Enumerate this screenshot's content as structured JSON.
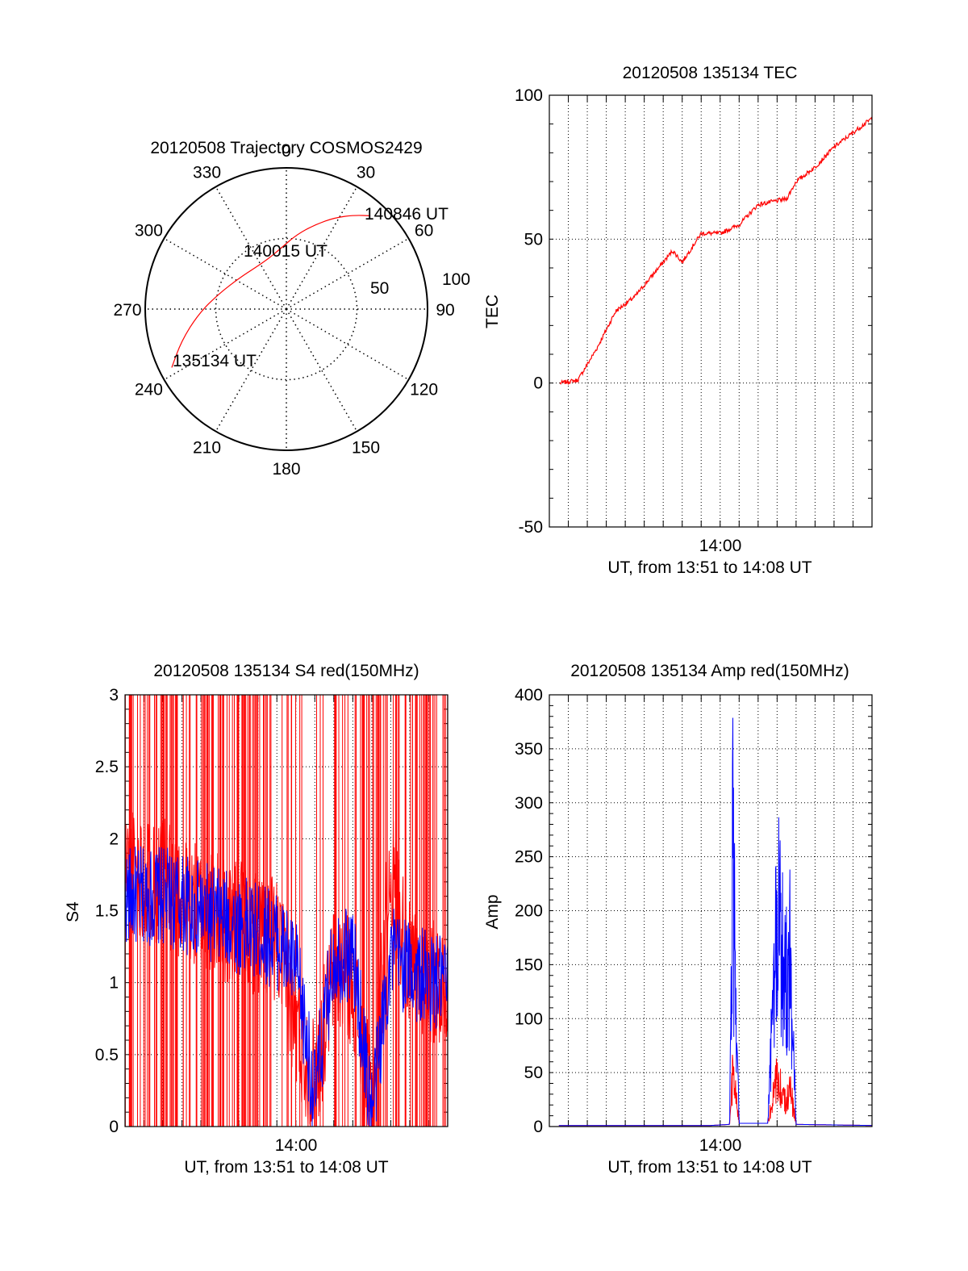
{
  "chart_data": [
    {
      "id": "trajectory",
      "type": "polar",
      "title": "20120508 Trajectory COSMOS2429",
      "azimuth_labels": [
        "0",
        "30",
        "60",
        "90",
        "120",
        "150",
        "180",
        "210",
        "240",
        "270",
        "300",
        "330"
      ],
      "radial_labels": [
        "50",
        "100"
      ],
      "series": [
        {
          "color": "#ff0000",
          "points": [
            {
              "az": 243,
              "el": 8
            },
            {
              "az": 253,
              "el": 20
            },
            {
              "az": 267,
              "el": 34
            },
            {
              "az": 283,
              "el": 46
            },
            {
              "az": 303,
              "el": 54
            },
            {
              "az": 323,
              "el": 57
            },
            {
              "az": 340,
              "el": 56
            },
            {
              "az": 355,
              "el": 51
            },
            {
              "az": 8,
              "el": 42
            },
            {
              "az": 19,
              "el": 33
            },
            {
              "az": 28,
              "el": 24
            },
            {
              "az": 36,
              "el": 16
            },
            {
              "az": 42,
              "el": 10
            }
          ]
        }
      ],
      "annotations": [
        "140846 UT",
        "140015 UT",
        "135134 UT"
      ]
    },
    {
      "id": "tec",
      "type": "line",
      "title": "20120508 135134 TEC",
      "xlabel": "UT, from 13:51 to 14:08 UT",
      "ylabel": "TEC",
      "xlim": [
        "13:51",
        "14:08"
      ],
      "ylim": [
        -50,
        100
      ],
      "yticks": [
        "-50",
        "0",
        "50",
        "100"
      ],
      "xticks": [
        "14:00"
      ],
      "grid": true,
      "series": [
        {
          "color": "#ff0000",
          "x": [
            "13:51:34",
            "13:52:30",
            "13:53:30",
            "13:54:30",
            "13:55:30",
            "13:56:30",
            "13:57:30",
            "13:58:00",
            "13:59:00",
            "14:00:00",
            "14:01:00",
            "14:02:00",
            "14:03:30",
            "14:04:00",
            "14:05:00",
            "14:06:00",
            "14:07:00",
            "14:08:00"
          ],
          "y": [
            0,
            1,
            12,
            25,
            30,
            38,
            46,
            42,
            52,
            52,
            55,
            62,
            64,
            70,
            75,
            82,
            87,
            92
          ]
        }
      ]
    },
    {
      "id": "s4",
      "type": "line",
      "title": "20120508 135134 S4 red(150MHz)",
      "xlabel": "UT, from 13:51 to 14:08 UT",
      "ylabel": "S4",
      "xlim": [
        "13:51",
        "14:08"
      ],
      "ylim": [
        0,
        3
      ],
      "yticks": [
        "0",
        "0.5",
        "1",
        "1.5",
        "2",
        "2.5",
        "3"
      ],
      "xticks": [
        "14:00"
      ],
      "grid": true,
      "series": [
        {
          "color": "#ff0000",
          "x": [
            "13:51",
            "13:53",
            "13:55",
            "13:57",
            "13:59",
            "14:00",
            "14:01",
            "14:02",
            "14:03",
            "14:04",
            "14:05",
            "14:06",
            "14:07",
            "14:08"
          ],
          "y": [
            1.8,
            1.7,
            1.5,
            1.4,
            1.3,
            0.7,
            0.3,
            1.1,
            1.0,
            0.1,
            1.8,
            1.1,
            1.0,
            1.0
          ]
        },
        {
          "color": "#0000ff",
          "x": [
            "13:51",
            "13:53",
            "13:55",
            "13:57",
            "13:59",
            "14:00",
            "14:01",
            "14:02",
            "14:03",
            "14:04",
            "14:05",
            "14:06",
            "14:07",
            "14:08"
          ],
          "y": [
            1.6,
            1.6,
            1.5,
            1.4,
            1.3,
            1.1,
            0.2,
            1.2,
            1.2,
            0.1,
            1.2,
            1.1,
            1.0,
            1.0
          ]
        }
      ]
    },
    {
      "id": "amp",
      "type": "line",
      "title": "20120508 135134 Amp red(150MHz)",
      "xlabel": "UT, from 13:51 to 14:08 UT",
      "ylabel": "Amp",
      "xlim": [
        "13:51",
        "14:08"
      ],
      "ylim": [
        0,
        400
      ],
      "yticks": [
        "0",
        "50",
        "100",
        "150",
        "200",
        "250",
        "300",
        "350",
        "400"
      ],
      "xticks": [
        "14:00"
      ],
      "grid": true,
      "series": [
        {
          "color": "#ff0000",
          "x": [
            "13:51:30",
            "13:59:30",
            "14:00:30",
            "14:00:40",
            "14:01:00",
            "14:02:30",
            "14:03:00",
            "14:03:20",
            "14:03:40",
            "14:04:00",
            "14:08:00"
          ],
          "y": [
            1,
            1,
            2,
            80,
            3,
            3,
            70,
            40,
            60,
            2,
            1
          ]
        },
        {
          "color": "#0000ff",
          "x": [
            "13:51:30",
            "13:59:30",
            "14:00:30",
            "14:00:40",
            "14:01:00",
            "14:02:30",
            "14:03:00",
            "14:03:20",
            "14:03:40",
            "14:04:00",
            "14:08:00"
          ],
          "y": [
            1,
            1,
            2,
            395,
            3,
            3,
            305,
            240,
            250,
            2,
            1
          ]
        }
      ]
    }
  ]
}
